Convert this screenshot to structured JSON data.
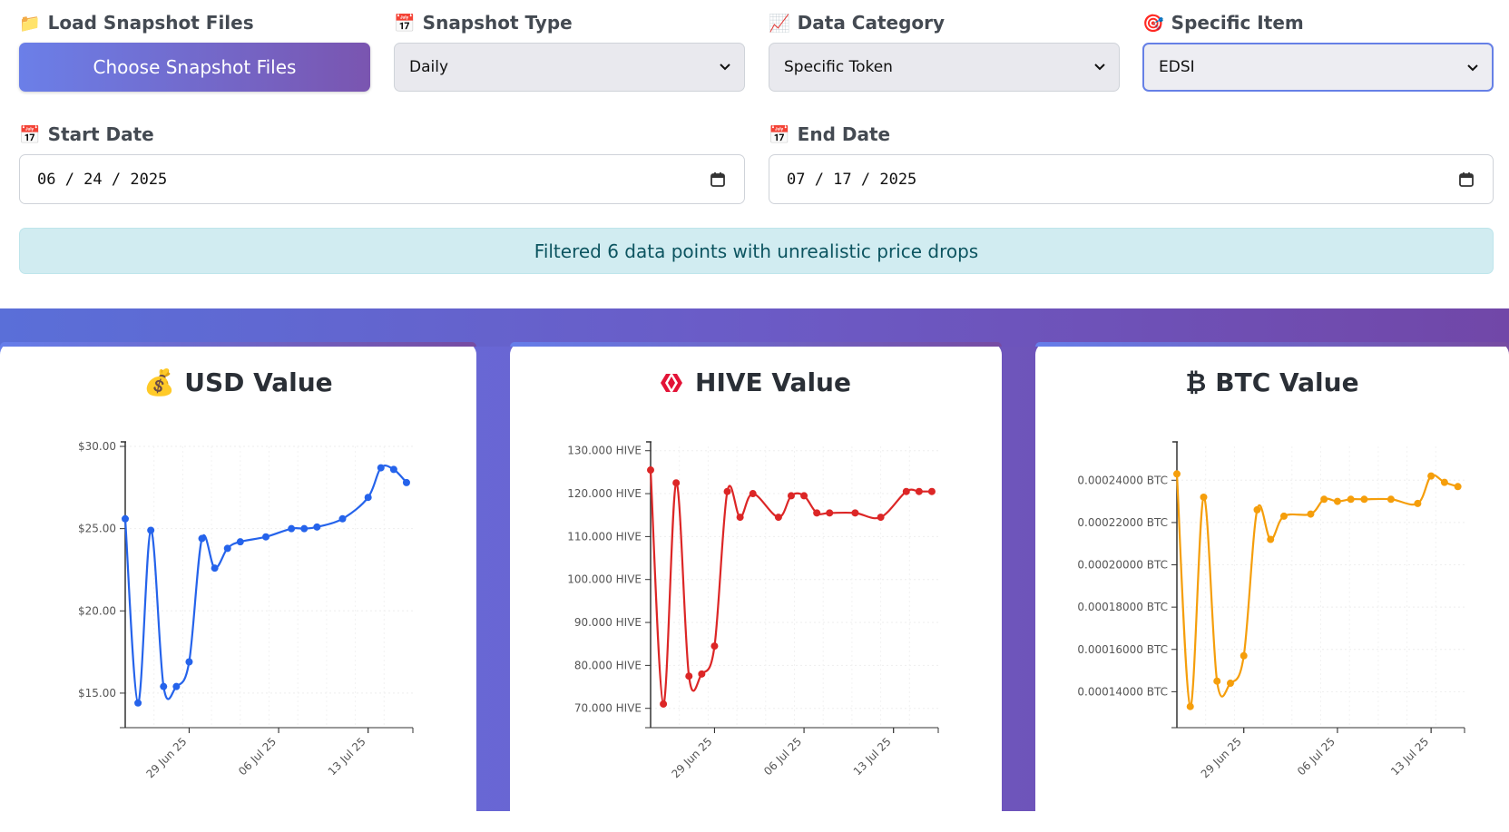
{
  "controls": {
    "load": {
      "icon": "folder-icon",
      "emoji": "📁",
      "label": "Load Snapshot Files",
      "button": "Choose Snapshot Files"
    },
    "snapshot_type": {
      "icon": "calendar-icon",
      "emoji": "📅",
      "label": "Snapshot Type",
      "value": "Daily"
    },
    "data_category": {
      "icon": "chart-increasing-icon",
      "emoji": "📈",
      "label": "Data Category",
      "value": "Specific Token"
    },
    "specific_item": {
      "icon": "target-icon",
      "emoji": "🎯",
      "label": "Specific Item",
      "value": "EDSI"
    },
    "start_date": {
      "icon": "calendar-icon",
      "emoji": "📅",
      "label": "Start Date",
      "value": "06 / 24 / 2025"
    },
    "end_date": {
      "icon": "calendar-icon",
      "emoji": "📅",
      "label": "End Date",
      "value": "07 / 17 / 2025"
    }
  },
  "notice": "Filtered 6 data points with unrealistic price drops",
  "colors": {
    "usd": "#2563eb",
    "hive": "#dc2626",
    "btc": "#f59e0b"
  },
  "chart_data": [
    {
      "type": "line",
      "title": "USD Value",
      "title_icon": "money-bag-icon",
      "title_emoji": "💰",
      "x": [
        "2025-06-24",
        "2025-06-25",
        "2025-06-26",
        "2025-06-27",
        "2025-06-28",
        "2025-06-29",
        "2025-06-30",
        "2025-07-01",
        "2025-07-02",
        "2025-07-03",
        "2025-07-05",
        "2025-07-07",
        "2025-07-08",
        "2025-07-09",
        "2025-07-11",
        "2025-07-13",
        "2025-07-14",
        "2025-07-15",
        "2025-07-16"
      ],
      "series": [
        {
          "values": [
            25.6,
            14.4,
            24.9,
            15.4,
            15.4,
            16.9,
            24.4,
            22.6,
            23.8,
            24.2,
            24.5,
            25.0,
            25.0,
            25.1,
            25.6,
            26.9,
            28.7,
            28.6,
            27.8
          ]
        }
      ],
      "yticks": [
        "$15.00",
        "$20.00",
        "$25.00",
        "$30.00"
      ],
      "ytick_values": [
        15,
        20,
        25,
        30
      ],
      "xticks": [
        "29 Jun 25",
        "06 Jul 25",
        "13 Jul 25"
      ],
      "ylim": [
        12.9,
        30
      ],
      "grid": true
    },
    {
      "type": "line",
      "title": "HIVE Value",
      "title_icon": "hive-logo-icon",
      "x": [
        "2025-06-24",
        "2025-06-25",
        "2025-06-26",
        "2025-06-27",
        "2025-06-28",
        "2025-06-29",
        "2025-06-30",
        "2025-07-01",
        "2025-07-02",
        "2025-07-04",
        "2025-07-05",
        "2025-07-06",
        "2025-07-07",
        "2025-07-08",
        "2025-07-10",
        "2025-07-12",
        "2025-07-14",
        "2025-07-15",
        "2025-07-16"
      ],
      "series": [
        {
          "values": [
            125.5,
            71.0,
            122.5,
            77.5,
            78.0,
            84.5,
            120.5,
            114.5,
            120.0,
            114.5,
            119.5,
            119.5,
            115.5,
            115.5,
            115.5,
            114.5,
            120.5,
            120.5,
            120.5
          ]
        }
      ],
      "yticks": [
        "70.000 HIVE",
        "80.000 HIVE",
        "90.000 HIVE",
        "100.000 HIVE",
        "110.000 HIVE",
        "120.000 HIVE",
        "130.000 HIVE"
      ],
      "ytick_values": [
        70,
        80,
        90,
        100,
        110,
        120,
        130
      ],
      "xticks": [
        "29 Jun 25",
        "06 Jul 25",
        "13 Jul 25"
      ],
      "ylim": [
        65.5,
        131
      ],
      "grid": true
    },
    {
      "type": "line",
      "title": "BTC Value",
      "title_icon": "bitcoin-icon",
      "title_emoji": "₿",
      "x": [
        "2025-06-24",
        "2025-06-25",
        "2025-06-26",
        "2025-06-27",
        "2025-06-28",
        "2025-06-29",
        "2025-06-30",
        "2025-07-01",
        "2025-07-02",
        "2025-07-04",
        "2025-07-05",
        "2025-07-06",
        "2025-07-07",
        "2025-07-08",
        "2025-07-10",
        "2025-07-12",
        "2025-07-13",
        "2025-07-14",
        "2025-07-15"
      ],
      "series": [
        {
          "values": [
            0.000243,
            0.000133,
            0.000232,
            0.000145,
            0.000144,
            0.000157,
            0.000226,
            0.000212,
            0.000223,
            0.000224,
            0.000231,
            0.00023,
            0.000231,
            0.000231,
            0.000231,
            0.000229,
            0.000242,
            0.000239,
            0.000237
          ]
        }
      ],
      "yticks": [
        "0.00014000 BTC",
        "0.00016000 BTC",
        "0.00018000 BTC",
        "0.00020000 BTC",
        "0.00022000 BTC",
        "0.00024000 BTC"
      ],
      "ytick_values": [
        0.00014,
        0.00016,
        0.00018,
        0.0002,
        0.00022,
        0.00024
      ],
      "xticks": [
        "29 Jun 25",
        "06 Jul 25",
        "13 Jul 25"
      ],
      "ylim": [
        0.000123,
        0.000256
      ],
      "grid": true
    }
  ]
}
